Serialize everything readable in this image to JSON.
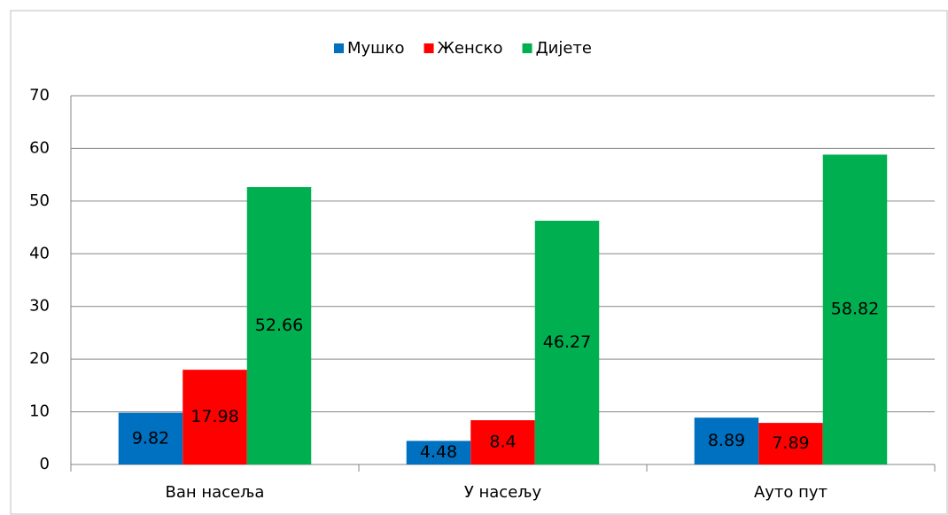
{
  "chart_data": {
    "type": "bar",
    "categories": [
      "Ван насеља",
      "У насељу",
      "Ауто пут"
    ],
    "series": [
      {
        "name": "Мушко",
        "color": "#0070c0",
        "values": [
          9.82,
          4.48,
          8.89
        ]
      },
      {
        "name": "Женско",
        "color": "#ff0000",
        "values": [
          17.98,
          8.4,
          7.89
        ]
      },
      {
        "name": "Дијете",
        "color": "#00b050",
        "values": [
          52.66,
          46.27,
          58.82
        ]
      }
    ],
    "ylim": [
      0,
      70
    ],
    "yticks": [
      0,
      10,
      20,
      30,
      40,
      50,
      60,
      70
    ],
    "grid": true,
    "legend": "top"
  }
}
